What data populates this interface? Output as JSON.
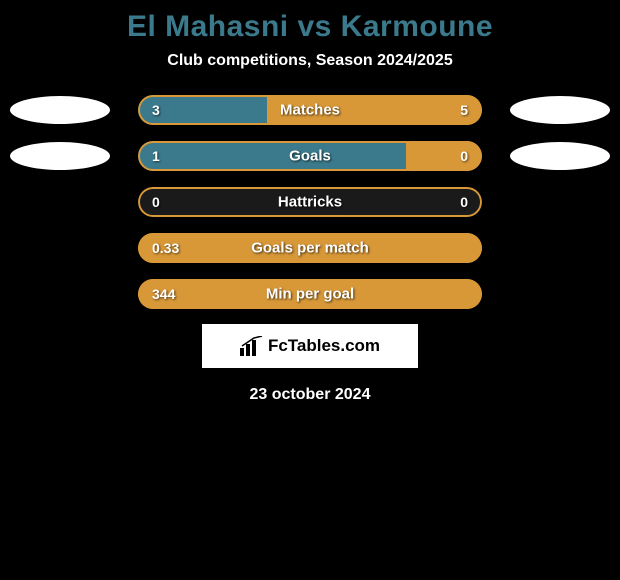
{
  "title": "El Mahasni vs Karmoune",
  "subtitle": "Club competitions, Season 2024/2025",
  "date": "23 october 2024",
  "logo_text": "FcTables.com",
  "colors": {
    "background": "#000000",
    "title": "#3b7a8c",
    "text": "#ffffff",
    "bar_border": "#d89838",
    "left_fill": "#3b7a8c",
    "right_fill": "#d89838",
    "empty_fill": "#1a1a1a",
    "ellipse": "#ffffff"
  },
  "stats": [
    {
      "label": "Matches",
      "left_value": "3",
      "right_value": "5",
      "left_pct": 37.5,
      "right_pct": 62.5,
      "left_color": "#3b7a8c",
      "right_color": "#d89838",
      "show_ellipses": true
    },
    {
      "label": "Goals",
      "left_value": "1",
      "right_value": "0",
      "left_pct": 78,
      "right_pct": 22,
      "left_color": "#3b7a8c",
      "right_color": "#d89838",
      "show_ellipses": true
    },
    {
      "label": "Hattricks",
      "left_value": "0",
      "right_value": "0",
      "left_pct": 0,
      "right_pct": 0,
      "left_color": "#3b7a8c",
      "right_color": "#d89838",
      "show_ellipses": false
    },
    {
      "label": "Goals per match",
      "left_value": "0.33",
      "right_value": "",
      "left_pct": 100,
      "right_pct": 0,
      "left_color": "#d89838",
      "right_color": "#d89838",
      "show_ellipses": false
    },
    {
      "label": "Min per goal",
      "left_value": "344",
      "right_value": "",
      "left_pct": 100,
      "right_pct": 0,
      "left_color": "#d89838",
      "right_color": "#d89838",
      "show_ellipses": false
    }
  ]
}
